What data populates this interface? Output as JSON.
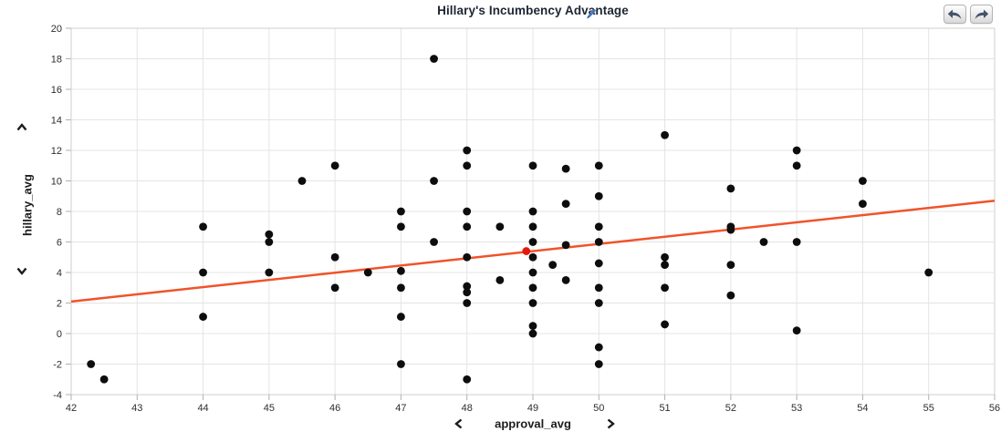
{
  "title": "Hillary's Incumbency Advantage",
  "toolbar": {
    "undo_icon": "undo-arrow",
    "redo_icon": "redo-arrow"
  },
  "axis_controls": {
    "y_up": "chevron-up",
    "y_down": "chevron-down",
    "x_left": "chevron-left",
    "x_right": "chevron-right"
  },
  "colors": {
    "point": "#0d0d0d",
    "trend_line": "#f0532a",
    "highlight_point": "#e8170d",
    "grid": "#e4e4e4",
    "axis_boundary": "#cfcfcf",
    "tick_mark": "#b0b0b0",
    "tick_label": "#2e2e2e",
    "title_text": "#1d2633",
    "pencil_icon": "#3f78c0",
    "toolbar_arrow": "#42536a"
  },
  "chart_data": {
    "type": "scatter",
    "title": "Hillary's Incumbency Advantage",
    "xlabel": "approval_avg",
    "ylabel": "hillary_avg",
    "xlim": [
      42,
      56
    ],
    "ylim": [
      -4,
      20
    ],
    "x_ticks": [
      42,
      43,
      44,
      45,
      46,
      47,
      48,
      49,
      50,
      51,
      52,
      53,
      54,
      55,
      56
    ],
    "y_ticks": [
      20,
      18,
      16,
      14,
      12,
      10,
      8,
      6,
      4,
      2,
      0,
      -2,
      -4
    ],
    "grid": true,
    "legend_position": "none",
    "points": [
      [
        42.3,
        -2
      ],
      [
        42.5,
        -3
      ],
      [
        44,
        7
      ],
      [
        44,
        4
      ],
      [
        44,
        1.1
      ],
      [
        45,
        6.5
      ],
      [
        45,
        6
      ],
      [
        45,
        4
      ],
      [
        45.5,
        10
      ],
      [
        46,
        11
      ],
      [
        46,
        5
      ],
      [
        46,
        3
      ],
      [
        46.5,
        4
      ],
      [
        47,
        8
      ],
      [
        47,
        7
      ],
      [
        47,
        4.1
      ],
      [
        47,
        3
      ],
      [
        47,
        1.1
      ],
      [
        47,
        -2
      ],
      [
        47.5,
        18
      ],
      [
        47.5,
        10
      ],
      [
        47.5,
        6
      ],
      [
        48,
        12
      ],
      [
        48,
        11
      ],
      [
        48,
        8
      ],
      [
        48,
        7
      ],
      [
        48,
        5
      ],
      [
        48,
        3.1
      ],
      [
        48,
        2.7
      ],
      [
        48,
        2
      ],
      [
        48,
        -3
      ],
      [
        48.5,
        7
      ],
      [
        48.5,
        3.5
      ],
      [
        49,
        11
      ],
      [
        49,
        8
      ],
      [
        49,
        7
      ],
      [
        49,
        6
      ],
      [
        49,
        5
      ],
      [
        49,
        4
      ],
      [
        49,
        3
      ],
      [
        49,
        2
      ],
      [
        49,
        0.5
      ],
      [
        49,
        0
      ],
      [
        49.3,
        4.5
      ],
      [
        49.5,
        10.8
      ],
      [
        49.5,
        8.5
      ],
      [
        49.5,
        5.8
      ],
      [
        49.5,
        3.5
      ],
      [
        50,
        11
      ],
      [
        50,
        9
      ],
      [
        50,
        7
      ],
      [
        50,
        6
      ],
      [
        50,
        4.6
      ],
      [
        50,
        3
      ],
      [
        50,
        2
      ],
      [
        50,
        -0.9
      ],
      [
        50,
        -2
      ],
      [
        51,
        13
      ],
      [
        51,
        5
      ],
      [
        51,
        4.5
      ],
      [
        51,
        3
      ],
      [
        51,
        0.6
      ],
      [
        52,
        9.5
      ],
      [
        52,
        7
      ],
      [
        52,
        6.8
      ],
      [
        52,
        4.5
      ],
      [
        52,
        2.5
      ],
      [
        52.5,
        6
      ],
      [
        53,
        12
      ],
      [
        53,
        11
      ],
      [
        53,
        6
      ],
      [
        53,
        0.2
      ],
      [
        54,
        10
      ],
      [
        54,
        8.5
      ],
      [
        55,
        4
      ]
    ],
    "highlight_point": {
      "x": 48.9,
      "y": 5.4
    },
    "trend_line": {
      "x_start": 42,
      "y_start": 2.1,
      "x_end": 56,
      "y_end": 8.7
    }
  }
}
